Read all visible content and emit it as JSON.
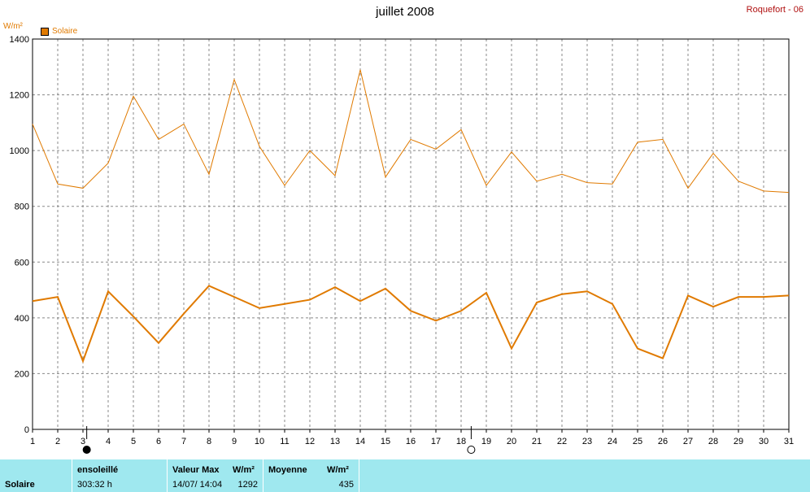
{
  "header": {
    "title": "juillet 2008",
    "station": "Roquefort - 06",
    "unit": "W/m²"
  },
  "legend": {
    "label": "Solaire",
    "color": "#e07a00"
  },
  "moon_phases": {
    "new_moon_day": 3,
    "full_moon_day": 18
  },
  "chart_data": {
    "type": "line",
    "x": [
      1,
      2,
      3,
      4,
      5,
      6,
      7,
      8,
      9,
      10,
      11,
      12,
      13,
      14,
      15,
      16,
      17,
      18,
      19,
      20,
      21,
      22,
      23,
      24,
      25,
      26,
      27,
      28,
      29,
      30,
      31
    ],
    "xlim": [
      1,
      31
    ],
    "ylim": [
      0,
      1400
    ],
    "yticks": [
      0,
      200,
      400,
      600,
      800,
      1000,
      1200,
      1400
    ],
    "ylabel": "W/m²",
    "grid": true,
    "legend_position": "top-left",
    "series": [
      {
        "name": "Solaire",
        "color": "#e07a00",
        "style": "thin",
        "values": [
          1095,
          880,
          865,
          955,
          1195,
          1040,
          1095,
          915,
          1255,
          1015,
          875,
          1000,
          910,
          1290,
          905,
          1040,
          1005,
          1075,
          875,
          995,
          890,
          915,
          885,
          880,
          1030,
          1040,
          865,
          990,
          890,
          855,
          850
        ]
      },
      {
        "name": "Solaire",
        "color": "#e07a00",
        "style": "thick",
        "values": [
          460,
          475,
          245,
          495,
          405,
          310,
          415,
          515,
          475,
          435,
          450,
          465,
          510,
          460,
          505,
          425,
          390,
          425,
          490,
          290,
          455,
          485,
          495,
          450,
          290,
          255,
          480,
          440,
          475,
          475,
          480
        ]
      }
    ]
  },
  "footer": {
    "row_label": "Solaire",
    "sunshine": {
      "header": "ensoleillé",
      "value": "303:32 h"
    },
    "max": {
      "header": "Valeur Max",
      "unit": "W/m²",
      "date": "14/07/  14:04",
      "value": "1292"
    },
    "mean": {
      "header": "Moyenne",
      "unit": "W/m²",
      "value": "435"
    }
  }
}
